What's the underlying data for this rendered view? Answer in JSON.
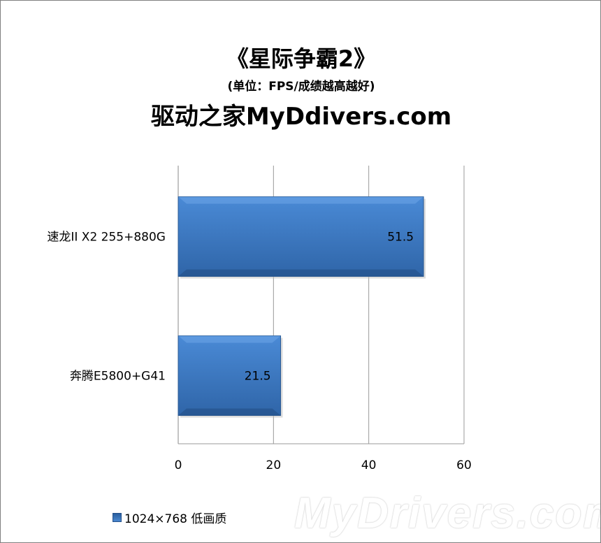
{
  "chart_data": {
    "type": "bar",
    "orientation": "horizontal",
    "title": "《星际争霸2》",
    "subtitle": "(单位：FPS/成绩越高越好)",
    "site_label": "驱动之家MyDdivers.com",
    "categories": [
      "速龙II X2 255+880G",
      "奔腾E5800+G41"
    ],
    "series": [
      {
        "name": "1024×768 低画质",
        "values": [
          51.5,
          21.5
        ],
        "color": "#3b78c4"
      }
    ],
    "data_labels": [
      "51.5",
      "21.5"
    ],
    "xlim": [
      0,
      60
    ],
    "xticks": [
      "0",
      "20",
      "40",
      "60"
    ],
    "grid": true,
    "legend_position": "bottom"
  },
  "watermark": "MyDrivers.com"
}
